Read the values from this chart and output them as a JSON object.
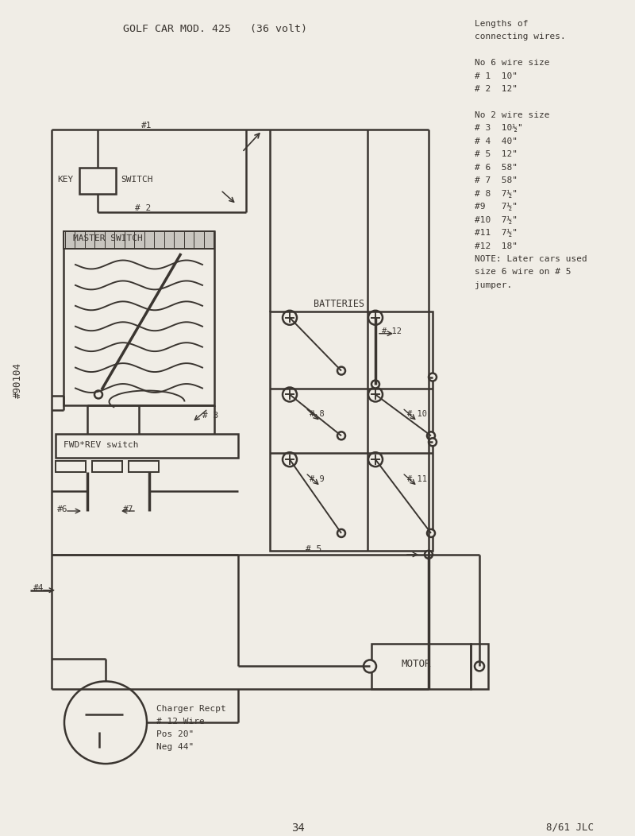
{
  "title": "GOLF CAR MOD. 425   (36 volt)",
  "bg_color": "#f0ede6",
  "line_color": "#3a3530",
  "sidebar_label": "#90104",
  "page_number": "34",
  "date_code": "8/61 JLC",
  "wire_legend": [
    "Lengths of",
    "connecting wires.",
    "",
    "No 6 wire size",
    "# 1  10\"",
    "# 2  12\"",
    "",
    "No 2 wire size",
    "# 3  10½\"",
    "# 4  40\"",
    "# 5  12\"",
    "# 6  58\"",
    "# 7  58\"",
    "# 8  7½\"",
    "#9   7½\"",
    "#10  7½\"",
    "#11  7½\"",
    "#12  18\"",
    "NOTE: Later cars used",
    "size 6 wire on # 5",
    "jumper."
  ],
  "key_switch_label": "KEY",
  "switch_label": "SWITCH",
  "master_switch_label": "MASTER SWITCH",
  "fwd_rev_label": "FWD*REV switch",
  "batteries_label": "BATTERIES",
  "motor_label": "MOTOR",
  "charger_lines": [
    "Charger Recpt",
    "# 12 Wire",
    "Pos 20\"",
    "Neg 44\""
  ]
}
